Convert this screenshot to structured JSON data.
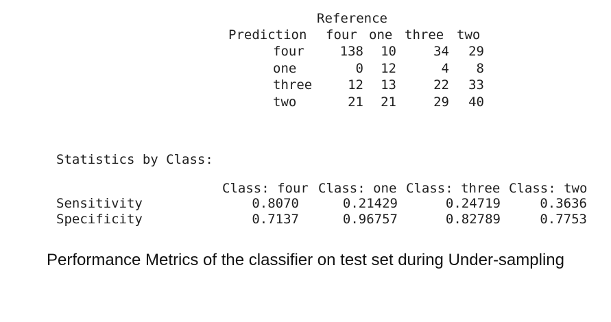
{
  "confusion_matrix": {
    "reference_label": "Reference",
    "prediction_label": "Prediction",
    "columns": [
      "four",
      "one",
      "three",
      "two"
    ],
    "rows": [
      {
        "label": "four",
        "values": [
          "138",
          "10",
          "34",
          "29"
        ]
      },
      {
        "label": "one",
        "values": [
          "0",
          "12",
          "4",
          "8"
        ]
      },
      {
        "label": "three",
        "values": [
          "12",
          "13",
          "22",
          "33"
        ]
      },
      {
        "label": "two",
        "values": [
          "21",
          "21",
          "29",
          "40"
        ]
      }
    ]
  },
  "statistics": {
    "title": "Statistics by Class:",
    "columns": [
      "Class: four",
      "Class: one",
      "Class: three",
      "Class: two"
    ],
    "rows": [
      {
        "label": "Sensitivity",
        "values": [
          "0.8070",
          "0.21429",
          "0.24719",
          "0.3636"
        ]
      },
      {
        "label": "Specificity",
        "values": [
          "0.7137",
          "0.96757",
          "0.82789",
          "0.7753"
        ]
      }
    ]
  },
  "caption": "Performance Metrics of the classifier on test set during Under-sampling"
}
